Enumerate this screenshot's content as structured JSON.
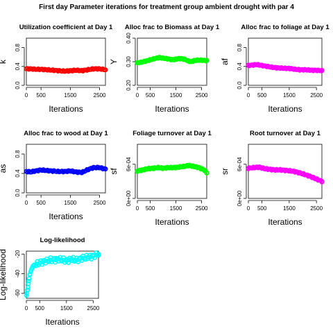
{
  "figure_title": "First day Parameter iterations for treatment group ambient drought with par 4",
  "chart_data": [
    {
      "type": "scatter",
      "title": "Utilization coefficient at Day 1",
      "xlabel": "Iterations",
      "ylabel": "k",
      "color": "#ff0000",
      "xlim": [
        0,
        2700
      ],
      "ylim": [
        0,
        1
      ],
      "xticks": [
        0,
        500,
        1500,
        2500
      ],
      "xticklabels": [
        "0",
        "500",
        "1500",
        "2500"
      ],
      "yticks": [
        0,
        0.4,
        0.8
      ],
      "yticklabels": [
        "0.0",
        "0.4",
        "0.8"
      ],
      "points": [
        [
          0,
          0.35
        ],
        [
          150,
          0.35
        ],
        [
          300,
          0.34
        ],
        [
          500,
          0.34
        ],
        [
          700,
          0.33
        ],
        [
          900,
          0.32
        ],
        [
          1100,
          0.31
        ],
        [
          1300,
          0.3
        ],
        [
          1500,
          0.31
        ],
        [
          1700,
          0.32
        ],
        [
          1900,
          0.31
        ],
        [
          2100,
          0.33
        ],
        [
          2300,
          0.35
        ],
        [
          2500,
          0.35
        ],
        [
          2700,
          0.33
        ]
      ]
    },
    {
      "type": "scatter",
      "title": "Alloc frac to Biomass at Day 1",
      "xlabel": "Iterations",
      "ylabel": "Y",
      "color": "#00ff00",
      "xlim": [
        0,
        2700
      ],
      "ylim": [
        0.2,
        0.4
      ],
      "xticks": [
        0,
        500,
        1500,
        2500
      ],
      "xticklabels": [
        "0",
        "500",
        "1500",
        "2500"
      ],
      "yticks": [
        0.2,
        0.3,
        0.4
      ],
      "yticklabels": [
        "0.20",
        "0.30",
        "0.40"
      ],
      "points": [
        [
          0,
          0.295
        ],
        [
          150,
          0.298
        ],
        [
          300,
          0.302
        ],
        [
          500,
          0.308
        ],
        [
          700,
          0.314
        ],
        [
          850,
          0.318
        ],
        [
          1000,
          0.315
        ],
        [
          1200,
          0.312
        ],
        [
          1400,
          0.308
        ],
        [
          1550,
          0.312
        ],
        [
          1700,
          0.314
        ],
        [
          1850,
          0.31
        ],
        [
          2000,
          0.302
        ],
        [
          2100,
          0.3
        ],
        [
          2200,
          0.305
        ],
        [
          2400,
          0.307
        ],
        [
          2700,
          0.305
        ]
      ]
    },
    {
      "type": "scatter",
      "title": "Alloc frac to foliage at Day 1",
      "xlabel": "Iterations",
      "ylabel": "af",
      "color": "#ff00ff",
      "xlim": [
        0,
        2700
      ],
      "ylim": [
        0,
        1
      ],
      "xticks": [
        0,
        500,
        1500,
        2500
      ],
      "xticklabels": [
        "0",
        "500",
        "1500",
        "2500"
      ],
      "yticks": [
        0,
        0.4,
        0.8
      ],
      "yticklabels": [
        "0.0",
        "0.4",
        "0.8"
      ],
      "points": [
        [
          0,
          0.42
        ],
        [
          150,
          0.43
        ],
        [
          300,
          0.44
        ],
        [
          500,
          0.42
        ],
        [
          700,
          0.4
        ],
        [
          900,
          0.38
        ],
        [
          1100,
          0.37
        ],
        [
          1300,
          0.36
        ],
        [
          1500,
          0.36
        ],
        [
          1700,
          0.34
        ],
        [
          1900,
          0.33
        ],
        [
          2100,
          0.33
        ],
        [
          2300,
          0.32
        ],
        [
          2500,
          0.32
        ],
        [
          2700,
          0.31
        ]
      ]
    },
    {
      "type": "scatter",
      "title": "Alloc frac to wood at Day 1",
      "xlabel": "Iterations",
      "ylabel": "as",
      "color": "#0000ff",
      "xlim": [
        0,
        2700
      ],
      "ylim": [
        0,
        1
      ],
      "xticks": [
        0,
        500,
        1500,
        2500
      ],
      "xticklabels": [
        "0",
        "500",
        "1500",
        "2500"
      ],
      "yticks": [
        0,
        0.4,
        0.8
      ],
      "yticklabels": [
        "0.0",
        "0.4",
        "0.8"
      ],
      "points": [
        [
          0,
          0.44
        ],
        [
          150,
          0.43
        ],
        [
          300,
          0.45
        ],
        [
          500,
          0.47
        ],
        [
          700,
          0.46
        ],
        [
          900,
          0.45
        ],
        [
          1100,
          0.44
        ],
        [
          1300,
          0.44
        ],
        [
          1500,
          0.45
        ],
        [
          1700,
          0.43
        ],
        [
          1900,
          0.42
        ],
        [
          2100,
          0.48
        ],
        [
          2300,
          0.52
        ],
        [
          2500,
          0.52
        ],
        [
          2700,
          0.49
        ]
      ]
    },
    {
      "type": "scatter",
      "title": "Foliage turnover at Day 1",
      "xlabel": "Iterations",
      "ylabel": "sf",
      "color": "#00ff00",
      "xlim": [
        0,
        2700
      ],
      "ylim": [
        0,
        0.00095
      ],
      "xticks": [
        0,
        500,
        1500,
        2500
      ],
      "xticklabels": [
        "0",
        "500",
        "1500",
        "2500"
      ],
      "yticks": [
        0,
        0.0006
      ],
      "yticklabels": [
        "0e+00",
        "6e-04"
      ],
      "points": [
        [
          0,
          0.00048
        ],
        [
          200,
          0.0005
        ],
        [
          400,
          0.00052
        ],
        [
          600,
          0.00053
        ],
        [
          800,
          0.00054
        ],
        [
          1000,
          0.00053
        ],
        [
          1200,
          0.00054
        ],
        [
          1400,
          0.00054
        ],
        [
          1600,
          0.00055
        ],
        [
          1800,
          0.00056
        ],
        [
          2000,
          0.00058
        ],
        [
          2200,
          0.00056
        ],
        [
          2400,
          0.00054
        ],
        [
          2600,
          0.0005
        ],
        [
          2700,
          0.00045
        ]
      ]
    },
    {
      "type": "scatter",
      "title": "Root turnover at Day 1",
      "xlabel": "Iterations",
      "ylabel": "sr",
      "color": "#ff00ff",
      "xlim": [
        0,
        2700
      ],
      "ylim": [
        0,
        0.00095
      ],
      "xticks": [
        0,
        500,
        1500,
        2500
      ],
      "xticklabels": [
        "0",
        "500",
        "1500",
        "2500"
      ],
      "yticks": [
        0,
        0.0006
      ],
      "yticklabels": [
        "0e+00",
        "6e-04"
      ],
      "points": [
        [
          0,
          0.00053
        ],
        [
          200,
          0.00054
        ],
        [
          400,
          0.00055
        ],
        [
          600,
          0.00052
        ],
        [
          800,
          0.00051
        ],
        [
          1000,
          0.0005
        ],
        [
          1200,
          0.0005
        ],
        [
          1400,
          0.00049
        ],
        [
          1600,
          0.00048
        ],
        [
          1800,
          0.00046
        ],
        [
          2000,
          0.00043
        ],
        [
          2200,
          0.0004
        ],
        [
          2400,
          0.00036
        ],
        [
          2600,
          0.00032
        ],
        [
          2700,
          0.0003
        ]
      ]
    },
    {
      "type": "scatter",
      "title": "Log-likelihood",
      "xlabel": "Iterations",
      "ylabel": "Log-likelihood",
      "color": "#00ffff",
      "xlim": [
        0,
        2700
      ],
      "ylim": [
        -65,
        -17
      ],
      "xticks": [
        0,
        500,
        1500,
        2500
      ],
      "xticklabels": [
        "0",
        "500",
        "1500",
        "2500"
      ],
      "yticks": [
        -60,
        -40,
        -20
      ],
      "yticklabels": [
        "-60",
        "-40",
        "-20"
      ],
      "points": [
        [
          0,
          -62
        ],
        [
          20,
          -60
        ],
        [
          40,
          -57
        ],
        [
          60,
          -54
        ],
        [
          80,
          -50
        ],
        [
          100,
          -45
        ],
        [
          130,
          -41
        ],
        [
          160,
          -38
        ],
        [
          200,
          -35
        ],
        [
          250,
          -32
        ],
        [
          300,
          -31
        ],
        [
          400,
          -30
        ],
        [
          500,
          -29
        ],
        [
          600,
          -28
        ],
        [
          700,
          -27
        ],
        [
          800,
          -27
        ],
        [
          900,
          -26
        ],
        [
          1000,
          -26
        ],
        [
          1100,
          -26
        ],
        [
          1200,
          -25
        ],
        [
          1300,
          -26
        ],
        [
          1400,
          -26
        ],
        [
          1500,
          -27
        ],
        [
          1600,
          -26
        ],
        [
          1700,
          -25
        ],
        [
          1800,
          -26
        ],
        [
          1900,
          -26
        ],
        [
          2000,
          -25
        ],
        [
          2100,
          -24
        ],
        [
          2200,
          -24
        ],
        [
          2300,
          -23
        ],
        [
          2400,
          -23
        ],
        [
          2500,
          -22
        ],
        [
          2600,
          -21
        ],
        [
          2700,
          -20
        ]
      ]
    }
  ]
}
